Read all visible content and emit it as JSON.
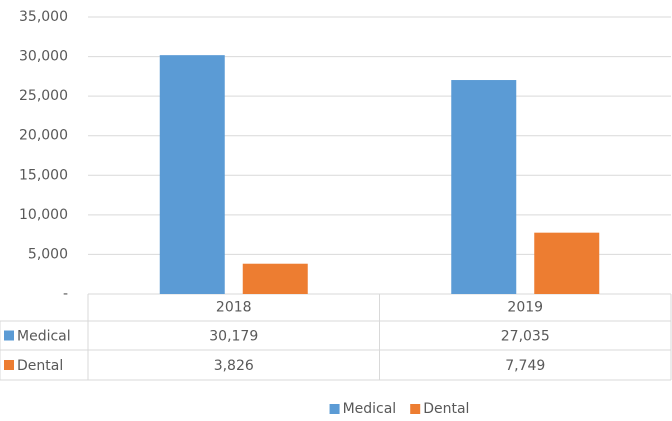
{
  "chart_data": {
    "type": "bar",
    "categories": [
      "2018",
      "2019"
    ],
    "series": [
      {
        "name": "Medical",
        "color": "#5b9bd5",
        "values": [
          30179,
          27035
        ],
        "value_labels": [
          "30,179",
          "27,035"
        ]
      },
      {
        "name": "Dental",
        "color": "#ed7d31",
        "values": [
          3826,
          7749
        ],
        "value_labels": [
          "3,826",
          "7,749"
        ]
      }
    ],
    "ylim": [
      0,
      35000
    ],
    "yticks": [
      {
        "value": 0,
        "label": "-"
      },
      {
        "value": 5000,
        "label": "5,000"
      },
      {
        "value": 10000,
        "label": "10,000"
      },
      {
        "value": 15000,
        "label": "15,000"
      },
      {
        "value": 20000,
        "label": "20,000"
      },
      {
        "value": 25000,
        "label": "25,000"
      },
      {
        "value": 30000,
        "label": "30,000"
      },
      {
        "value": 35000,
        "label": "35,000"
      }
    ],
    "grid": true,
    "legend": "bottom",
    "data_table": true
  }
}
